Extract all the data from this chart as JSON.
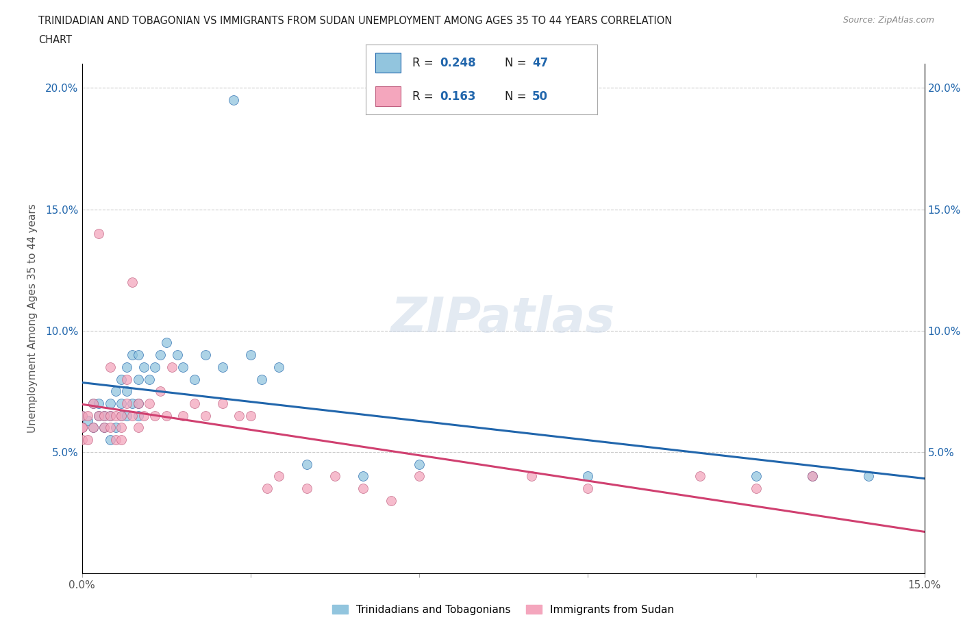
{
  "title_line1": "TRINIDADIAN AND TOBAGONIAN VS IMMIGRANTS FROM SUDAN UNEMPLOYMENT AMONG AGES 35 TO 44 YEARS CORRELATION",
  "title_line2": "CHART",
  "source_text": "Source: ZipAtlas.com",
  "ylabel": "Unemployment Among Ages 35 to 44 years",
  "xlim": [
    0.0,
    0.15
  ],
  "ylim": [
    0.0,
    0.21
  ],
  "ytick_vals": [
    0.05,
    0.1,
    0.15,
    0.2
  ],
  "ytick_labels": [
    "5.0%",
    "10.0%",
    "15.0%",
    "20.0%"
  ],
  "watermark": "ZIPatlas",
  "color_blue": "#92c5de",
  "color_pink": "#f4a6bd",
  "line_color_blue": "#2166ac",
  "line_color_pink": "#d6604d",
  "legend_label1": "Trinidadians and Tobagonians",
  "legend_label2": "Immigrants from Sudan",
  "blue_x": [
    0.0,
    0.0,
    0.001,
    0.002,
    0.002,
    0.003,
    0.003,
    0.004,
    0.004,
    0.005,
    0.005,
    0.005,
    0.006,
    0.006,
    0.007,
    0.007,
    0.007,
    0.008,
    0.008,
    0.008,
    0.009,
    0.009,
    0.01,
    0.01,
    0.01,
    0.01,
    0.011,
    0.012,
    0.013,
    0.014,
    0.015,
    0.017,
    0.018,
    0.02,
    0.022,
    0.025,
    0.027,
    0.03,
    0.032,
    0.035,
    0.04,
    0.05,
    0.06,
    0.09,
    0.12,
    0.13,
    0.14
  ],
  "blue_y": [
    0.06,
    0.065,
    0.063,
    0.07,
    0.06,
    0.065,
    0.07,
    0.06,
    0.065,
    0.055,
    0.065,
    0.07,
    0.06,
    0.075,
    0.065,
    0.07,
    0.08,
    0.065,
    0.075,
    0.085,
    0.07,
    0.09,
    0.065,
    0.07,
    0.08,
    0.09,
    0.085,
    0.08,
    0.085,
    0.09,
    0.095,
    0.09,
    0.085,
    0.08,
    0.09,
    0.085,
    0.195,
    0.09,
    0.08,
    0.085,
    0.045,
    0.04,
    0.045,
    0.04,
    0.04,
    0.04,
    0.04
  ],
  "pink_x": [
    0.0,
    0.0,
    0.0,
    0.0,
    0.001,
    0.001,
    0.002,
    0.002,
    0.003,
    0.003,
    0.004,
    0.004,
    0.005,
    0.005,
    0.005,
    0.006,
    0.006,
    0.007,
    0.007,
    0.007,
    0.008,
    0.008,
    0.009,
    0.009,
    0.01,
    0.01,
    0.011,
    0.012,
    0.013,
    0.014,
    0.015,
    0.016,
    0.018,
    0.02,
    0.022,
    0.025,
    0.028,
    0.03,
    0.033,
    0.035,
    0.04,
    0.045,
    0.05,
    0.055,
    0.06,
    0.08,
    0.09,
    0.11,
    0.12,
    0.13
  ],
  "pink_y": [
    0.055,
    0.06,
    0.065,
    0.06,
    0.065,
    0.055,
    0.06,
    0.07,
    0.065,
    0.14,
    0.06,
    0.065,
    0.06,
    0.065,
    0.085,
    0.065,
    0.055,
    0.06,
    0.055,
    0.065,
    0.07,
    0.08,
    0.065,
    0.12,
    0.06,
    0.07,
    0.065,
    0.07,
    0.065,
    0.075,
    0.065,
    0.085,
    0.065,
    0.07,
    0.065,
    0.07,
    0.065,
    0.065,
    0.035,
    0.04,
    0.035,
    0.04,
    0.035,
    0.03,
    0.04,
    0.04,
    0.035,
    0.04,
    0.035,
    0.04
  ]
}
